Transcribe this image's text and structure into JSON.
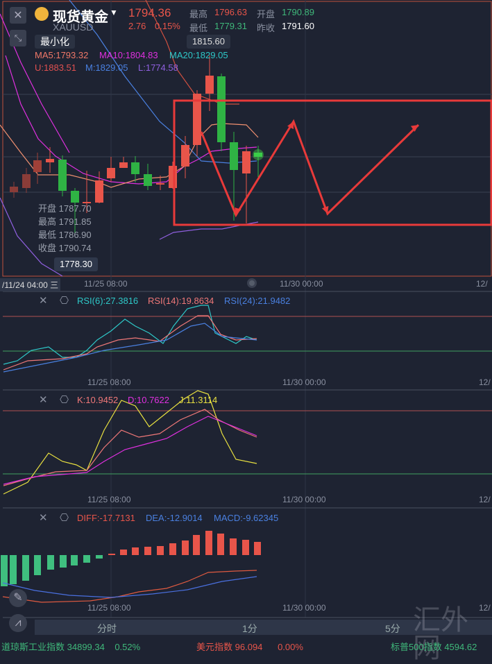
{
  "header": {
    "title": "现货黄金",
    "symbol": "XAUUSD",
    "price": "1794.36",
    "change": "2.76",
    "change_pct": "0.15%",
    "high_label": "最高",
    "high": "1796.63",
    "open_label": "开盘",
    "open": "1790.89",
    "low_label": "最低",
    "low": "1779.31",
    "prev_close_label": "昨收",
    "prev_close": "1791.60",
    "minimize_tooltip": "最小化"
  },
  "main": {
    "ma5": "MA5:1793.32",
    "ma10": "MA10:1804.83",
    "ma20": "MA20:1829.05",
    "boll_u": "U:1883.51",
    "boll_m": "M:1829.05",
    "boll_l": "L:1774.58",
    "max_marker": "1815.60",
    "min_marker": "1778.30",
    "ohlc": {
      "open_label": "开盘",
      "open": "1787.70",
      "high_label": "最高",
      "high": "1791.85",
      "low_label": "最低",
      "low": "1786.90",
      "close_label": "收盘",
      "close": "1790.74"
    },
    "crosshair_time": "/11/24 04:00 三",
    "time_labels": [
      "11/25 08:00",
      "11/30 00:00",
      "12/"
    ]
  },
  "rsi": {
    "rsi6": "RSI(6):27.3816",
    "rsi14": "RSI(14):19.8634",
    "rsi24": "RSI(24):21.9482"
  },
  "kdj": {
    "k": "K:10.9452",
    "d": "D:10.7622",
    "j": "J:11.3114"
  },
  "macd": {
    "diff": "DIFF:-17.7131",
    "dea": "DEA:-12.9014",
    "macd": "MACD:-9.62345"
  },
  "periods": [
    "分时",
    "1分",
    "5分"
  ],
  "watermark": "汇外网",
  "ticker": [
    {
      "name": "道琼斯工业指数",
      "value": "34899.34",
      "pct": "0.52%"
    },
    {
      "name": "美元指数",
      "value": "96.094",
      "pct": "0.00%"
    },
    {
      "name": "标普500指数",
      "value": "4594.62"
    }
  ],
  "colors": {
    "up": "#e8554a",
    "down": "#2fb344",
    "annotation": "#e83a3a",
    "bg": "#1e2332"
  }
}
